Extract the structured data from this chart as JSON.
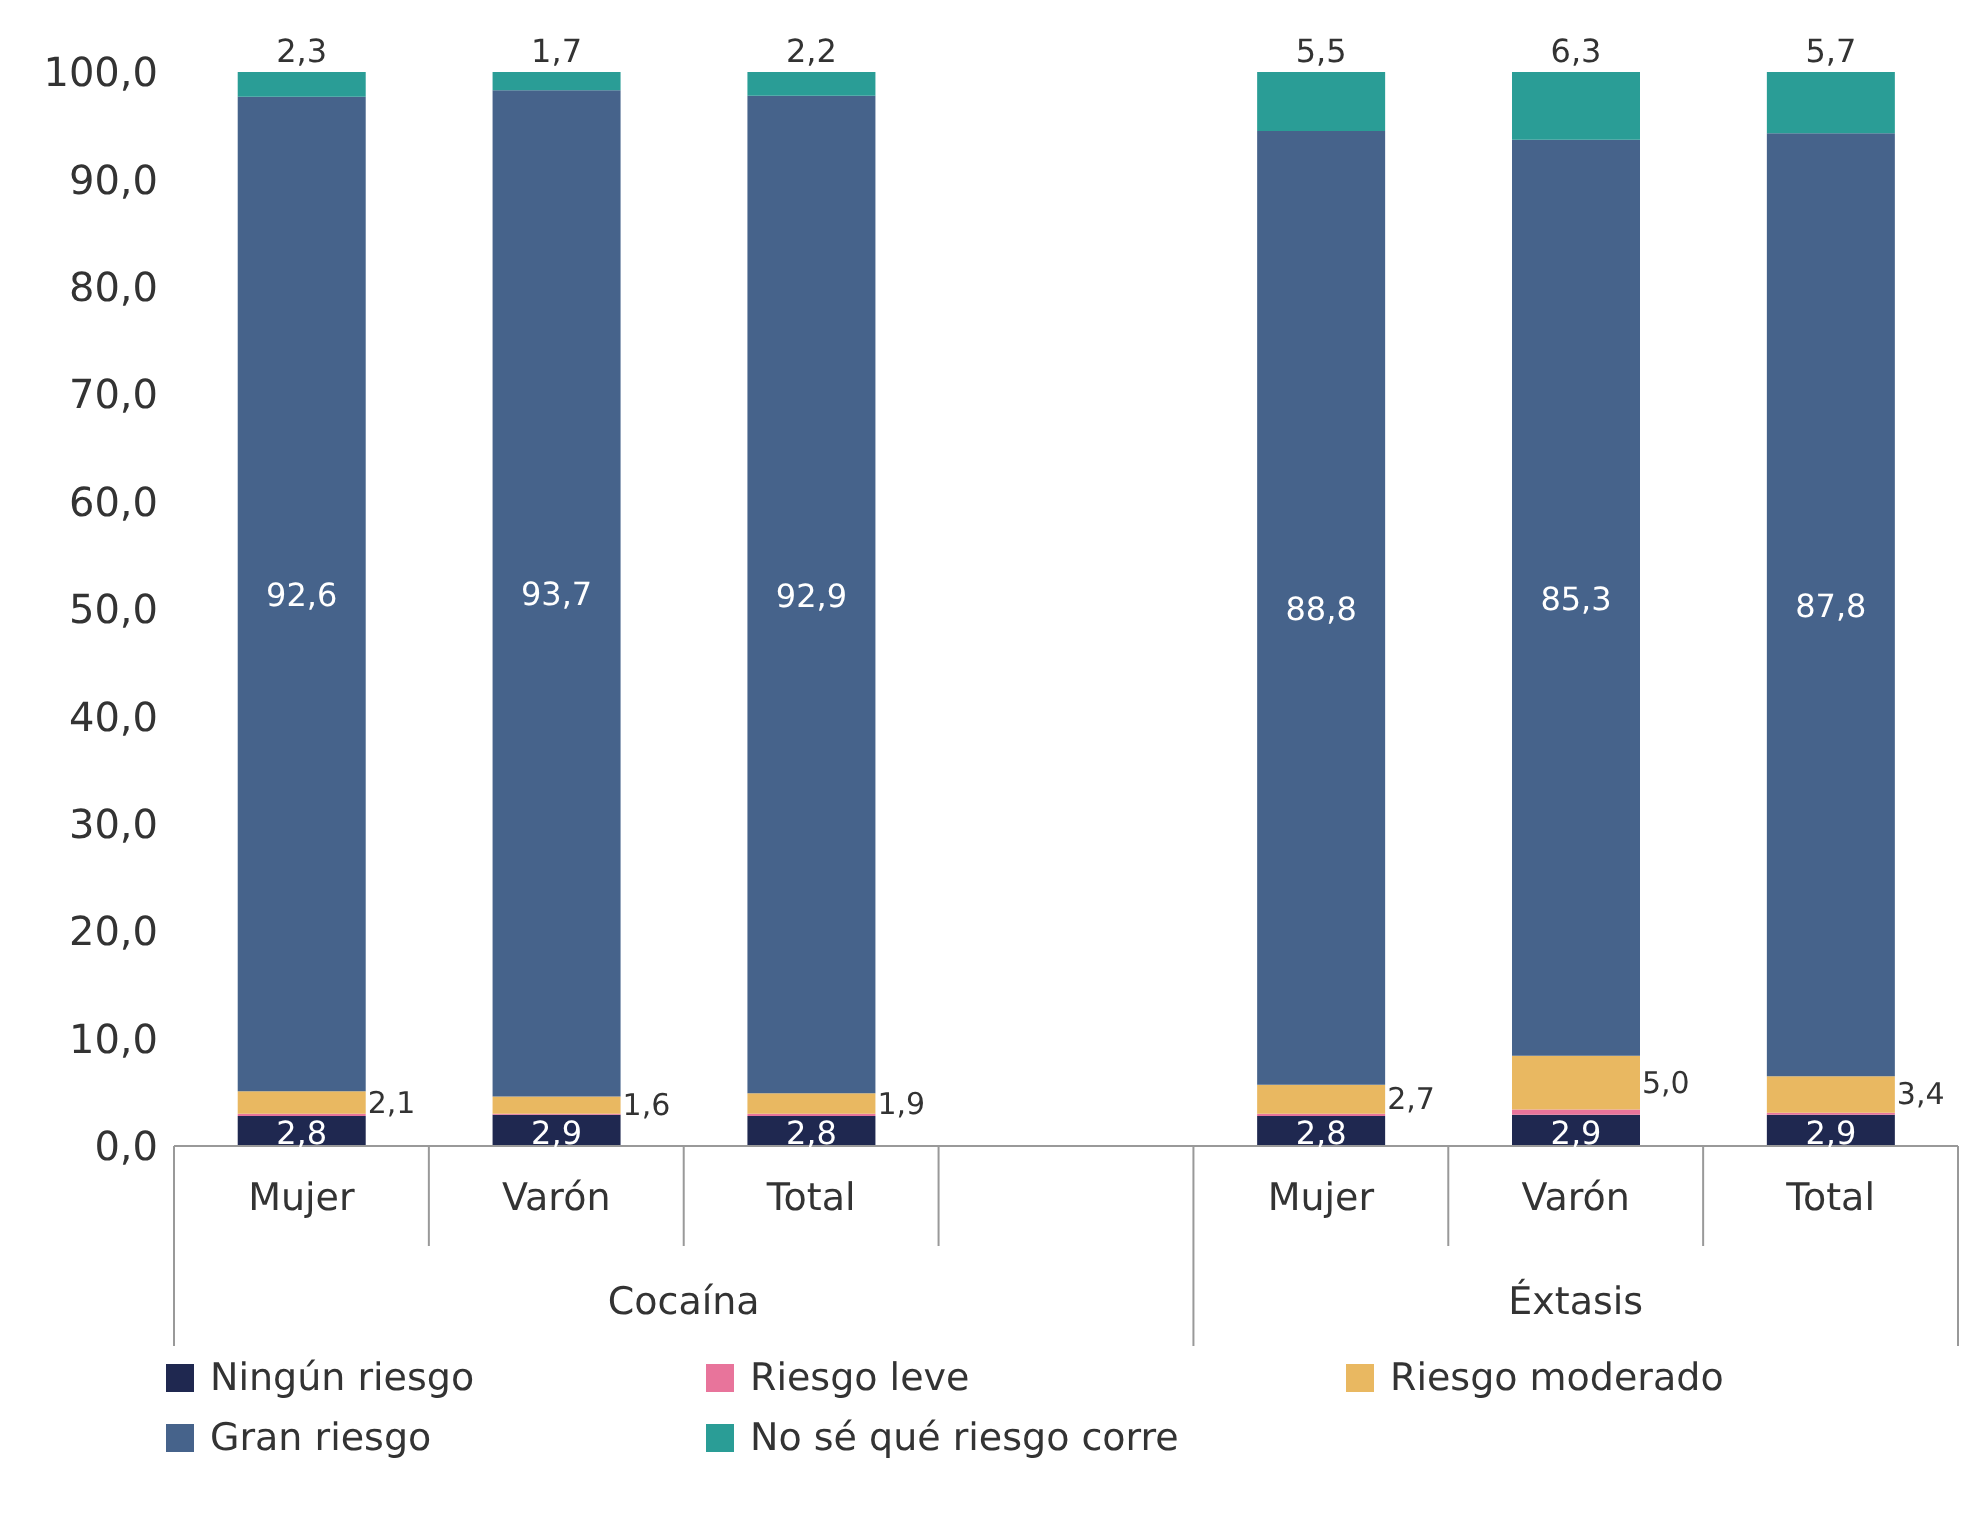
{
  "chart_data": {
    "type": "bar",
    "stacked": true,
    "categories": [
      "Mujer",
      "Varón",
      "Total",
      null,
      "Mujer",
      "Varón",
      "Total"
    ],
    "series": [
      {
        "name": "Ningún riesgo",
        "color": "#1f2850",
        "values": [
          2.8,
          2.9,
          2.8,
          null,
          2.8,
          2.9,
          2.9
        ],
        "value_labels": [
          "2,8",
          "2,9",
          "2,8",
          null,
          "2,8",
          "2,9",
          "2,9"
        ]
      },
      {
        "name": "Riesgo leve",
        "color": "#e8749b",
        "values": [
          0.2,
          0.1,
          0.2,
          null,
          0.2,
          0.5,
          0.2
        ]
      },
      {
        "name": "Riesgo moderado",
        "color": "#e9b861",
        "values": [
          2.1,
          1.6,
          1.9,
          null,
          2.7,
          5.0,
          3.4
        ],
        "value_labels": [
          "2,1",
          "1,6",
          "1,9",
          null,
          "2,7",
          "5,0",
          "3,4"
        ]
      },
      {
        "name": "Gran riesgo",
        "color": "#46638b",
        "values": [
          92.6,
          93.7,
          92.9,
          null,
          88.8,
          85.3,
          87.8
        ],
        "value_labels": [
          "92,6",
          "93,7",
          "92,9",
          null,
          "88,8",
          "85,3",
          "87,8"
        ]
      },
      {
        "name": "No sé qué riesgo corre",
        "color": "#2a9d96",
        "values": [
          2.3,
          1.7,
          2.2,
          null,
          5.5,
          6.3,
          5.7
        ],
        "value_labels": [
          "2,3",
          "1,7",
          "2,2",
          null,
          "5,5",
          "6,3",
          "5,7"
        ]
      }
    ],
    "annotations": [
      "Cocaína",
      "Éxtasis"
    ],
    "ylim": [
      0,
      100
    ],
    "yticks": [
      {
        "value": 0,
        "label": "0,0"
      },
      {
        "value": 10,
        "label": "10,0"
      },
      {
        "value": 20,
        "label": "20,0"
      },
      {
        "value": 30,
        "label": "30,0"
      },
      {
        "value": 40,
        "label": "40,0"
      },
      {
        "value": 50,
        "label": "50,0"
      },
      {
        "value": 60,
        "label": "60,0"
      },
      {
        "value": 70,
        "label": "70,0"
      },
      {
        "value": 80,
        "label": "80,0"
      },
      {
        "value": 90,
        "label": "90,0"
      },
      {
        "value": 100,
        "label": "100,0"
      }
    ],
    "grid": false,
    "legend": "bottom"
  }
}
